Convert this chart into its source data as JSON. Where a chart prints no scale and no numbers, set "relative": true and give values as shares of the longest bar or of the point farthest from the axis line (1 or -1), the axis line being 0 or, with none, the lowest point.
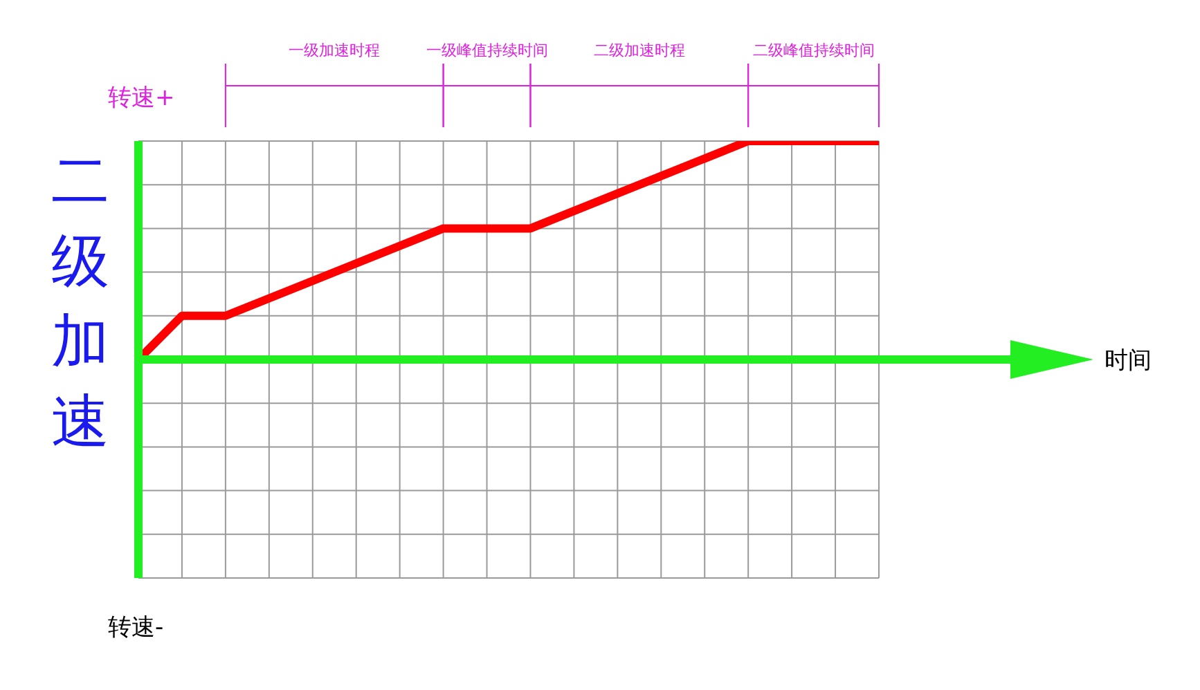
{
  "chart_data": {
    "type": "line",
    "title": "二级加速",
    "ylabel": "转速+",
    "annotations": [
      "时间",
      "一级加速时程",
      "一级峰值持续时间",
      "二级加速时程",
      "二级峰值持续时间",
      "转速-"
    ],
    "categories": [
      null,
      null,
      null,
      null,
      null,
      null,
      null,
      null,
      null,
      null,
      null,
      null,
      null,
      null,
      null,
      null,
      null,
      null
    ],
    "series": [
      {
        "color": "#ff0000",
        "values": [
          0,
          0.2,
          0.2,
          null,
          null,
          null,
          null,
          0.6,
          null,
          0.6,
          null,
          null,
          null,
          null,
          1,
          null,
          null,
          1
        ]
      }
    ],
    "relative": true,
    "grid": true
  }
}
